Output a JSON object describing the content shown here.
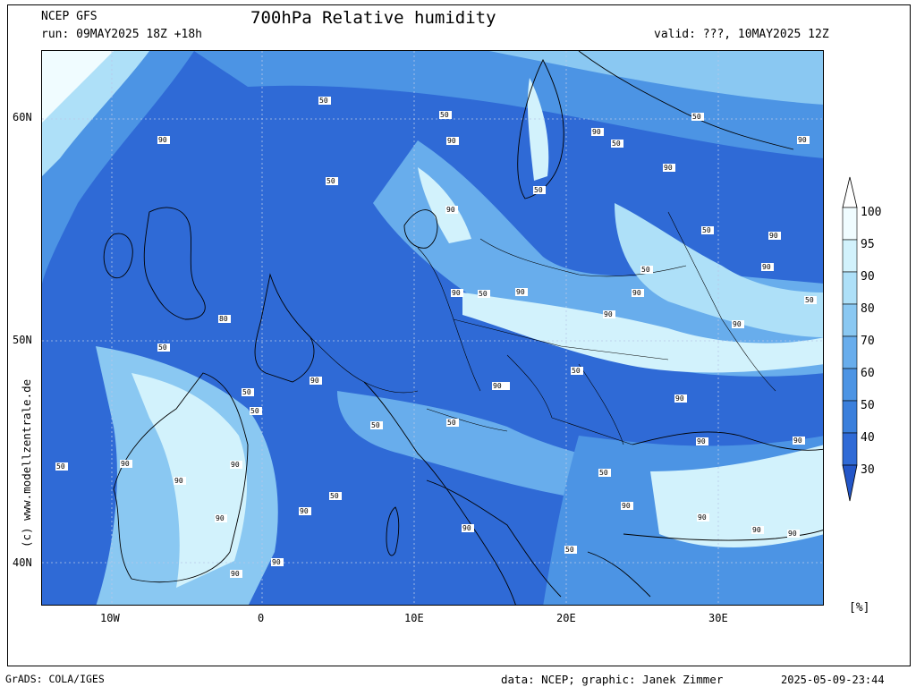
{
  "header": {
    "model": "NCEP GFS",
    "run": "run: 09MAY2025 18Z +18h",
    "title": "700hPa Relative humidity",
    "valid": "valid: ???, 10MAY2025 12Z"
  },
  "map": {
    "lat_labels": [
      "60N",
      "50N",
      "40N"
    ],
    "lon_labels": [
      "10W",
      "0",
      "10E",
      "20E",
      "30E"
    ],
    "contour_labels": [
      "50",
      "90",
      "50",
      "50",
      "90",
      "90",
      "50",
      "90",
      "50",
      "90",
      "50",
      "90",
      "50",
      "90",
      "90",
      "50",
      "90",
      "50",
      "90",
      "90",
      "50",
      "90",
      "80",
      "90",
      "50",
      "50",
      "90",
      "90",
      "50",
      "90",
      "50",
      "50",
      "50",
      "90",
      "90",
      "90",
      "50",
      "90",
      "50",
      "90",
      "50",
      "90",
      "90",
      "90",
      "90",
      "90"
    ]
  },
  "colorbar": {
    "levels": [
      "100",
      "95",
      "90",
      "80",
      "70",
      "60",
      "50",
      "40",
      "30"
    ],
    "colors": [
      "#f0fcff",
      "#d2f2fc",
      "#aee0f8",
      "#8ac8f2",
      "#68adec",
      "#4c94e4",
      "#3a7fdc",
      "#2f6ad6",
      "#2356c8"
    ],
    "unit": "[%]"
  },
  "credits": {
    "side": "(c) www.modellzentrale.de",
    "grads": "GrADS: COLA/IGES",
    "data": "data: NCEP; graphic: Janek Zimmer",
    "timestamp": "2025-05-09-23:44"
  }
}
